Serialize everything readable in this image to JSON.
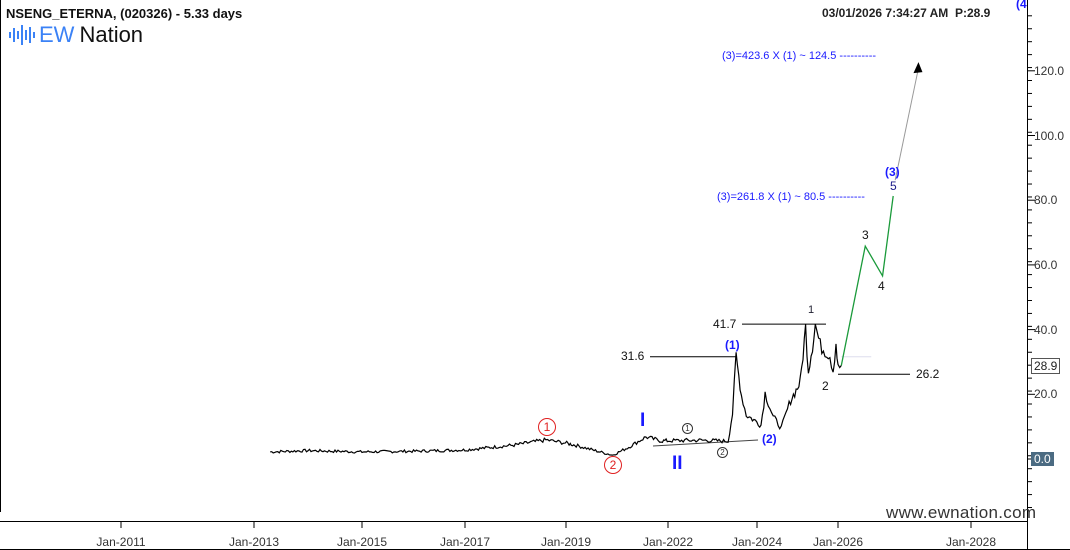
{
  "header": {
    "title": "NSENG_ETERNA, (020326) - 5.33 days",
    "timestamp": "03/01/2026 7:34:27 AM",
    "price_readout": "P:28.9",
    "corner_label": "(4",
    "logo_ew": "EW",
    "logo_nation": "Nation",
    "watermark": "www.ewnation.com"
  },
  "colors": {
    "accent": "#1a1aff",
    "projection": "#1a9a3a",
    "red_wave": "#e02020",
    "logo_blue": "#3b82f6"
  },
  "chart_data": {
    "type": "line",
    "title": "NSENG_ETERNA, (020326) - 5.33 days",
    "xlabel": "",
    "ylabel": "",
    "x_ticks": [
      {
        "year": 2011,
        "label": "Jan-2011"
      },
      {
        "year": 2013,
        "label": "Jan-2013"
      },
      {
        "year": 2015,
        "label": "Jan-2015"
      },
      {
        "year": 2017,
        "label": "Jan-2017"
      },
      {
        "year": 2019,
        "label": "Jan-2019"
      },
      {
        "year": 2022,
        "label": "Jan-2022"
      },
      {
        "year": 2024,
        "label": "Jan-2024"
      },
      {
        "year": 2026,
        "label": "Jan-2026"
      },
      {
        "year": 2028,
        "label": "Jan-2028"
      }
    ],
    "y_ticks": [
      "0.0",
      "20.0",
      "40.0",
      "60.0",
      "80.0",
      "100.0",
      "120.0"
    ],
    "y_tick_values": [
      0,
      20,
      40,
      60,
      80,
      100,
      120
    ],
    "ylim": [
      -15,
      140
    ],
    "last_price": "28.9",
    "zero_label": "0.0",
    "series": [
      {
        "name": "price",
        "points": [
          [
            2013.3,
            2.2
          ],
          [
            2014.0,
            2.6
          ],
          [
            2015.0,
            2.2
          ],
          [
            2016.0,
            2.4
          ],
          [
            2017.0,
            2.8
          ],
          [
            2017.97,
            4.3
          ],
          [
            2018.6,
            5.9
          ],
          [
            2019.3,
            4.2
          ],
          [
            2020.0,
            2.2
          ],
          [
            2020.37,
            1.2
          ],
          [
            2020.8,
            3.4
          ],
          [
            2021.35,
            6.8
          ],
          [
            2021.8,
            5.6
          ],
          [
            2022.74,
            5.8
          ],
          [
            2023.35,
            5.5
          ],
          [
            2023.45,
            14
          ],
          [
            2023.53,
            31.6
          ],
          [
            2023.65,
            19.8
          ],
          [
            2023.76,
            13.6
          ],
          [
            2024.1,
            10.5
          ],
          [
            2024.2,
            20.4
          ],
          [
            2024.4,
            13.0
          ],
          [
            2024.6,
            9.6
          ],
          [
            2024.83,
            18.2
          ],
          [
            2025.0,
            22
          ],
          [
            2025.07,
            24
          ],
          [
            2025.2,
            40.5
          ],
          [
            2025.27,
            27.5
          ],
          [
            2025.37,
            35.2
          ],
          [
            2025.44,
            41.7
          ],
          [
            2025.56,
            35
          ],
          [
            2025.8,
            32.1
          ],
          [
            2025.88,
            27.5
          ],
          [
            2025.95,
            36
          ],
          [
            2026.0,
            28
          ],
          [
            2026.05,
            28.9
          ]
        ]
      },
      {
        "name": "projection",
        "points": [
          [
            2026.05,
            28.9
          ],
          [
            2026.41,
            65.8
          ],
          [
            2026.67,
            56.6
          ],
          [
            2026.83,
            81.3
          ]
        ]
      },
      {
        "name": "arrow",
        "points": [
          [
            2026.86,
            86.2
          ],
          [
            2027.21,
            122.7
          ]
        ]
      }
    ],
    "levels": [
      {
        "label": "31.6",
        "value": 31.6
      },
      {
        "label": "41.7",
        "value": 41.7
      },
      {
        "label": "26.2",
        "value": 26.2
      }
    ],
    "projections": [
      {
        "label": "(3)=423.6 X (1) ~ 124.5 ----------",
        "value": 124.5
      },
      {
        "label": "(3)=261.8 X (1) ~ 80.5 ----------",
        "value": 80.5
      }
    ],
    "wave_labels": {
      "red1": "1",
      "red2": "2",
      "I": "I",
      "II": "II",
      "c1": "1",
      "c2": "2",
      "p1": "(1)",
      "p2": "(2)",
      "w1": "1",
      "w2": "2",
      "w3": "3",
      "w4": "4",
      "w5": "5",
      "p3": "(3)"
    }
  }
}
